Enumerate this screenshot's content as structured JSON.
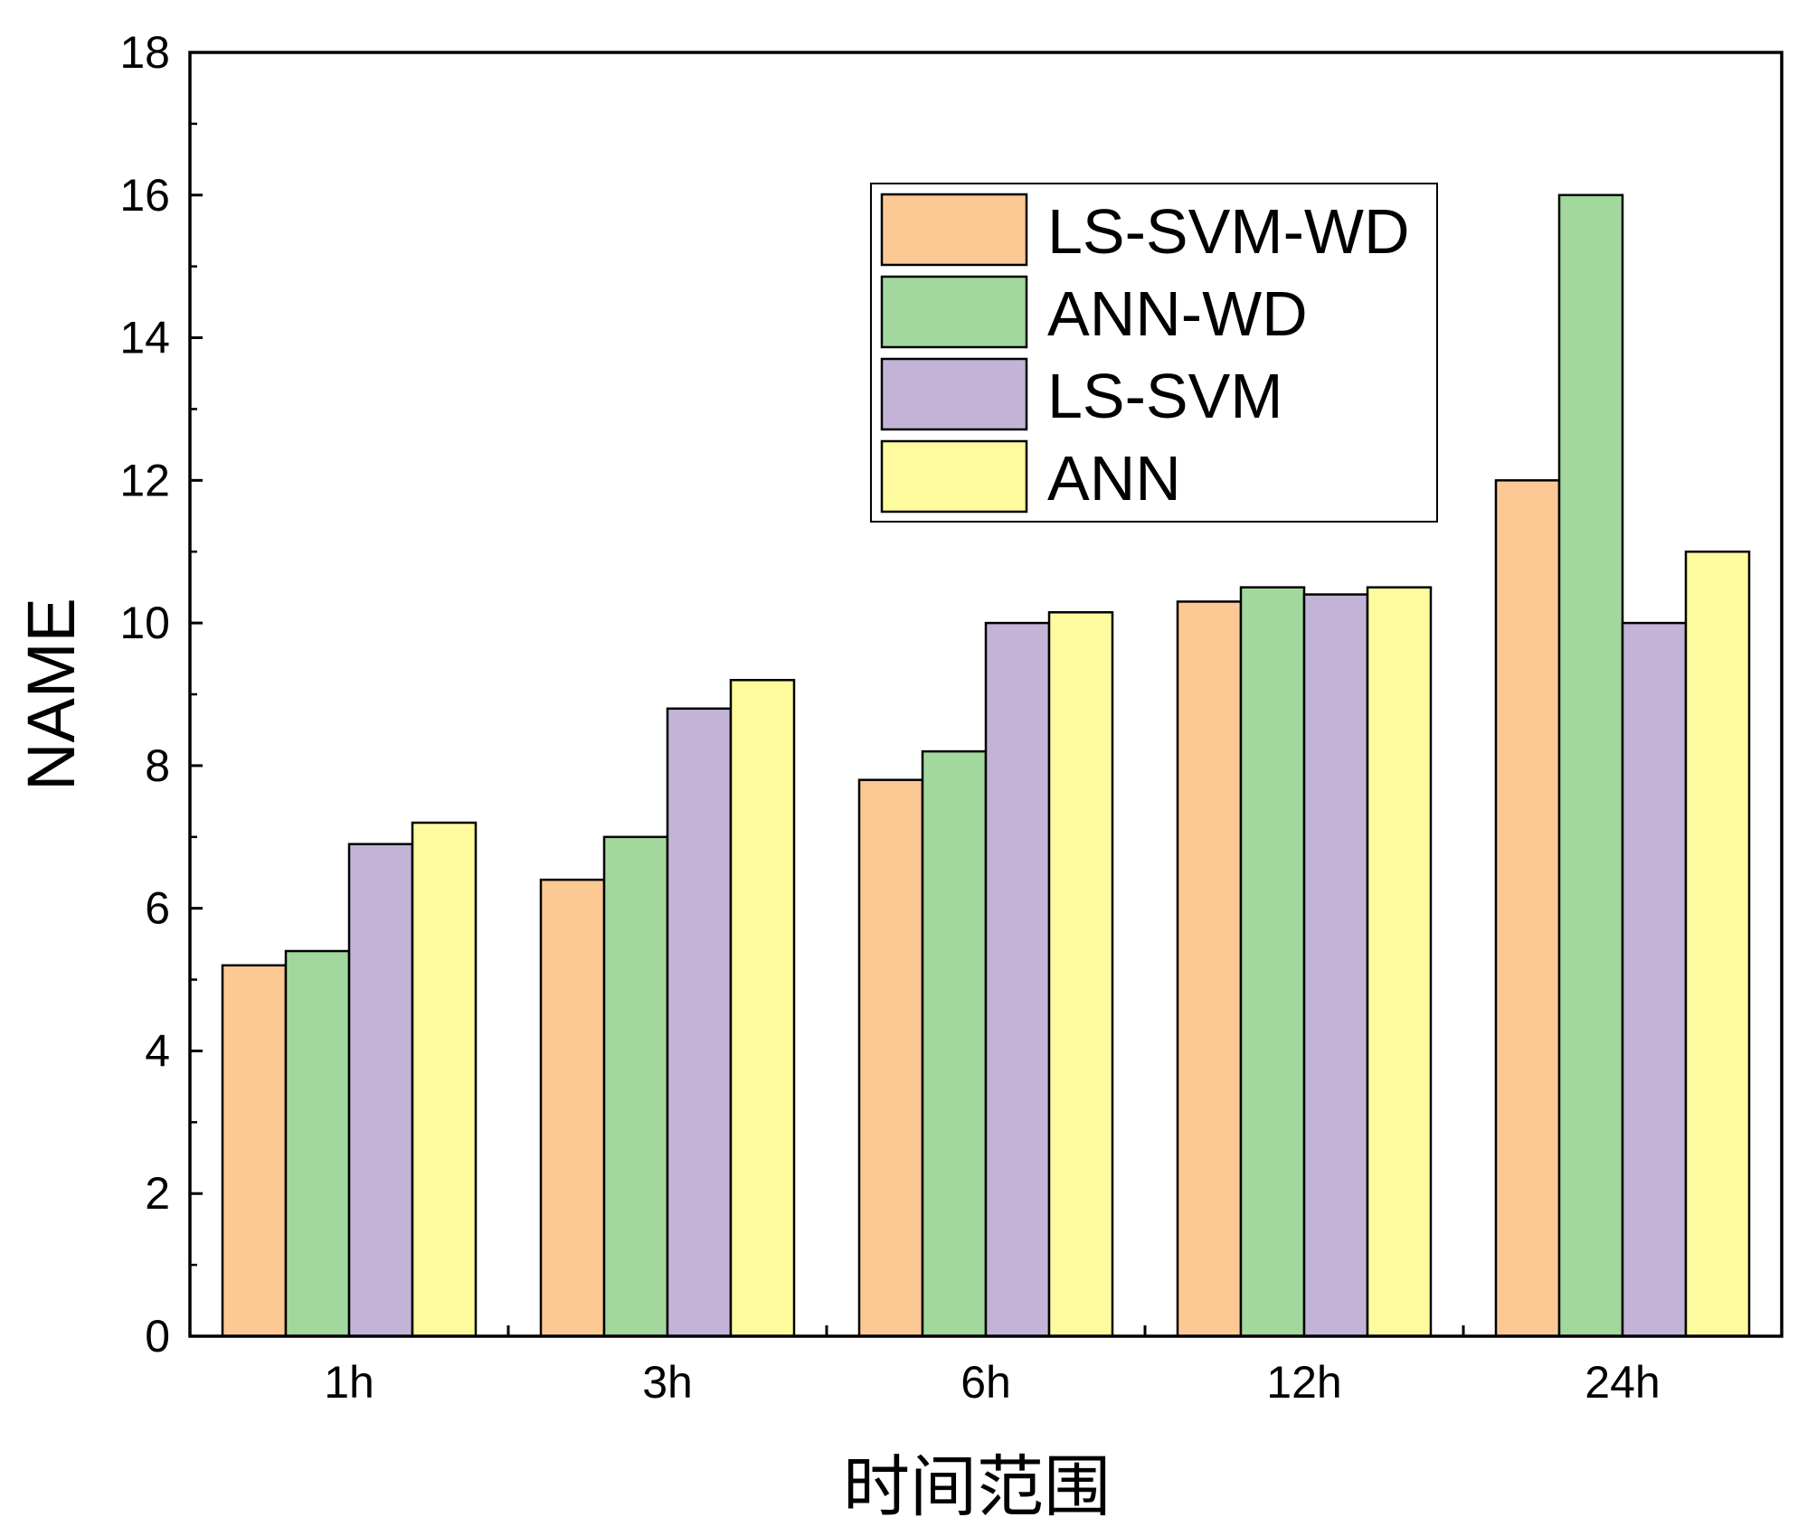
{
  "chart_data": {
    "type": "bar",
    "title": "",
    "xlabel": "时间范围",
    "ylabel": "NAME",
    "categories": [
      "1h",
      "3h",
      "6h",
      "12h",
      "24h"
    ],
    "series": [
      {
        "name": "LS-SVM-WD",
        "color": "#FCC995",
        "values": [
          5.2,
          6.4,
          7.8,
          10.3,
          12.0
        ]
      },
      {
        "name": "ANN-WD",
        "color": "#A2D89E",
        "values": [
          5.4,
          7.0,
          8.2,
          10.5,
          16.0
        ]
      },
      {
        "name": "LS-SVM",
        "color": "#C3B4D7",
        "values": [
          6.9,
          8.8,
          10.0,
          10.4,
          10.0
        ]
      },
      {
        "name": "ANN",
        "color": "#FDFB9D",
        "values": [
          7.2,
          9.2,
          10.15,
          10.5,
          11.0
        ]
      }
    ],
    "ylim": [
      0,
      18
    ],
    "yticks": [
      0,
      2,
      4,
      6,
      8,
      10,
      12,
      14,
      16,
      18
    ],
    "grid": false,
    "legend_position": "top-right"
  }
}
